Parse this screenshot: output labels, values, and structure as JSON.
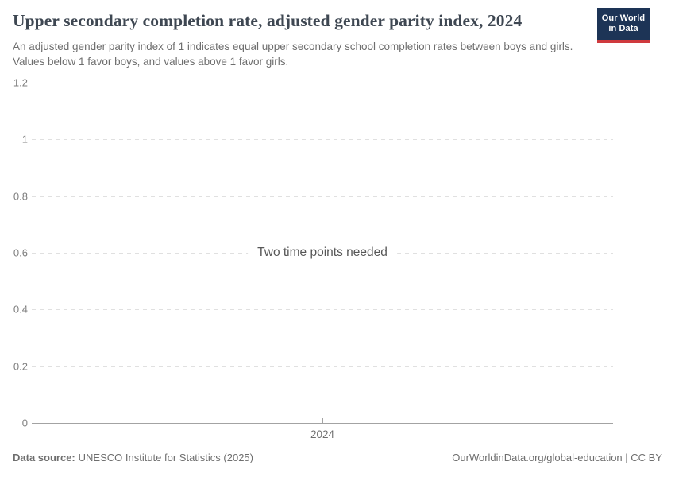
{
  "header": {
    "title": "Upper secondary completion rate, adjusted gender parity index, 2024",
    "subtitle": "An adjusted gender parity index of 1 indicates equal upper secondary school completion rates between boys and girls. Values below 1 favor boys, and values above 1 favor girls.",
    "logo": {
      "line1": "Our World",
      "line2": "in Data"
    }
  },
  "chart_data": {
    "type": "line",
    "title": "Upper secondary completion rate, adjusted gender parity index, 2024",
    "series": [],
    "empty_state_message": "Two time points needed",
    "x_tick_labels": [
      "2024"
    ],
    "y_tick_labels": [
      "0",
      "0.2",
      "0.4",
      "0.6",
      "0.8",
      "1",
      "1.2"
    ],
    "ylim": [
      0,
      1.2
    ],
    "xlabel": "",
    "ylabel": "",
    "grid": "horizontal-dashed",
    "legend_position": "none"
  },
  "footer": {
    "datasource_label": "Data source:",
    "datasource_value": "UNESCO Institute for Statistics (2025)",
    "attribution": "OurWorldinData.org/global-education | CC BY"
  },
  "colors": {
    "title": "#3e4752",
    "subtitle": "#6e6e6e",
    "gridline": "#e0e0e0",
    "axis_line": "#a3a3a3",
    "tick_label": "#7f7f7f",
    "logo_navy": "#1d3456",
    "logo_red": "#cf3a3e",
    "background": "#ffffff"
  }
}
